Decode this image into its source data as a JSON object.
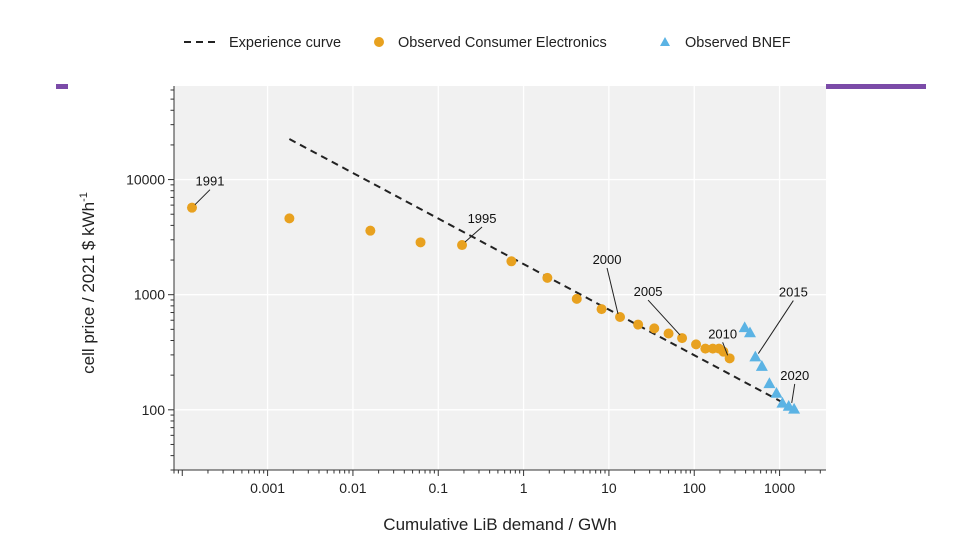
{
  "chart_data": {
    "type": "scatter",
    "xlabel": "Cumulative LiB demand / GWh",
    "ylabel_main": "cell price / 2021 $ kWh",
    "ylabel_sup": "-1",
    "x_scale": "log",
    "y_scale": "log",
    "xlim": [
      8e-05,
      3500
    ],
    "ylim": [
      30,
      65000
    ],
    "grid": true,
    "legend_position": "top",
    "x_ticks": [
      {
        "value": 0.001,
        "label": "0.001"
      },
      {
        "value": 0.01,
        "label": "0.01"
      },
      {
        "value": 0.1,
        "label": "0.1"
      },
      {
        "value": 1,
        "label": "1"
      },
      {
        "value": 10,
        "label": "10"
      },
      {
        "value": 100,
        "label": "100"
      },
      {
        "value": 1000,
        "label": "1000"
      }
    ],
    "y_ticks": [
      {
        "value": 100,
        "label": "100"
      },
      {
        "value": 1000,
        "label": "1000"
      },
      {
        "value": 10000,
        "label": "10000"
      }
    ],
    "series": [
      {
        "name": "Experience curve",
        "kind": "line",
        "color": "#222222",
        "points": [
          {
            "x": 0.0018,
            "y": 22500
          },
          {
            "x": 1300,
            "y": 108
          }
        ]
      },
      {
        "name": "Observed Consumer Electronics",
        "kind": "circle",
        "color": "#E8A11F",
        "points": [
          {
            "x": 0.00013,
            "y": 5700
          },
          {
            "x": 0.0018,
            "y": 4600
          },
          {
            "x": 0.016,
            "y": 3600
          },
          {
            "x": 0.062,
            "y": 2850
          },
          {
            "x": 0.19,
            "y": 2700
          },
          {
            "x": 0.72,
            "y": 1950
          },
          {
            "x": 1.9,
            "y": 1400
          },
          {
            "x": 4.2,
            "y": 920
          },
          {
            "x": 8.2,
            "y": 750
          },
          {
            "x": 13.5,
            "y": 640
          },
          {
            "x": 22,
            "y": 550
          },
          {
            "x": 34,
            "y": 510
          },
          {
            "x": 50,
            "y": 460
          },
          {
            "x": 72,
            "y": 420
          },
          {
            "x": 105,
            "y": 370
          },
          {
            "x": 135,
            "y": 340
          },
          {
            "x": 165,
            "y": 340
          },
          {
            "x": 195,
            "y": 340
          },
          {
            "x": 220,
            "y": 320
          },
          {
            "x": 260,
            "y": 280
          }
        ]
      },
      {
        "name": "Observed BNEF",
        "kind": "triangle",
        "color": "#5BB3E4",
        "points": [
          {
            "x": 390,
            "y": 520
          },
          {
            "x": 450,
            "y": 470
          },
          {
            "x": 520,
            "y": 290
          },
          {
            "x": 620,
            "y": 240
          },
          {
            "x": 760,
            "y": 170
          },
          {
            "x": 920,
            "y": 140
          },
          {
            "x": 1080,
            "y": 115
          },
          {
            "x": 1280,
            "y": 108
          },
          {
            "x": 1480,
            "y": 102
          }
        ]
      }
    ],
    "annotations": [
      {
        "text": "1991",
        "x": 0.00013,
        "y": 5700,
        "dx": 18,
        "dy": -22
      },
      {
        "text": "1995",
        "x": 0.19,
        "y": 2700,
        "dx": 20,
        "dy": -22
      },
      {
        "text": "2000",
        "x": 13.5,
        "y": 640,
        "dx": -13,
        "dy": -53
      },
      {
        "text": "2005",
        "x": 72,
        "y": 420,
        "dx": -34,
        "dy": -42
      },
      {
        "text": "2010",
        "x": 260,
        "y": 280,
        "dx": -7,
        "dy": -20
      },
      {
        "text": "2015",
        "x": 520,
        "y": 290,
        "dx": 38,
        "dy": -60
      },
      {
        "text": "2020",
        "x": 1280,
        "y": 108,
        "dx": 6,
        "dy": -26
      }
    ]
  },
  "colors": {
    "plot_background": "#f1f1f1",
    "grid": "#ffffff",
    "accent_bar": "#7B4BA8"
  }
}
